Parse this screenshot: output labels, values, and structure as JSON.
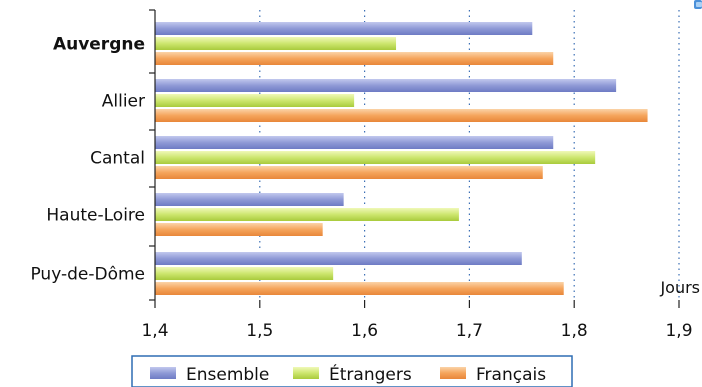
{
  "chart_data": {
    "type": "bar",
    "orientation": "horizontal",
    "categories": [
      "Auvergne",
      "Allier",
      "Cantal",
      "Haute-Loire",
      "Puy-de-Dôme"
    ],
    "highlight_category": "Auvergne",
    "series": [
      {
        "name": "Ensemble",
        "values": [
          1.76,
          1.84,
          1.78,
          1.58,
          1.75
        ],
        "color": "#8f9ad6"
      },
      {
        "name": "Étrangers",
        "values": [
          1.63,
          1.59,
          1.82,
          1.69,
          1.57
        ],
        "color": "#cde66f"
      },
      {
        "name": "Français",
        "values": [
          1.78,
          1.87,
          1.77,
          1.56,
          1.79
        ],
        "color": "#f5a55c"
      }
    ],
    "xlim": [
      1.4,
      1.9
    ],
    "x_ticks": [
      "1,4",
      "1,5",
      "1,6",
      "1,7",
      "1,8",
      "1,9"
    ],
    "x_tick_values": [
      1.4,
      1.5,
      1.6,
      1.7,
      1.8,
      1.9
    ],
    "xlabel": "Jours",
    "grid": "vertical dotted",
    "legend_position": "bottom"
  }
}
